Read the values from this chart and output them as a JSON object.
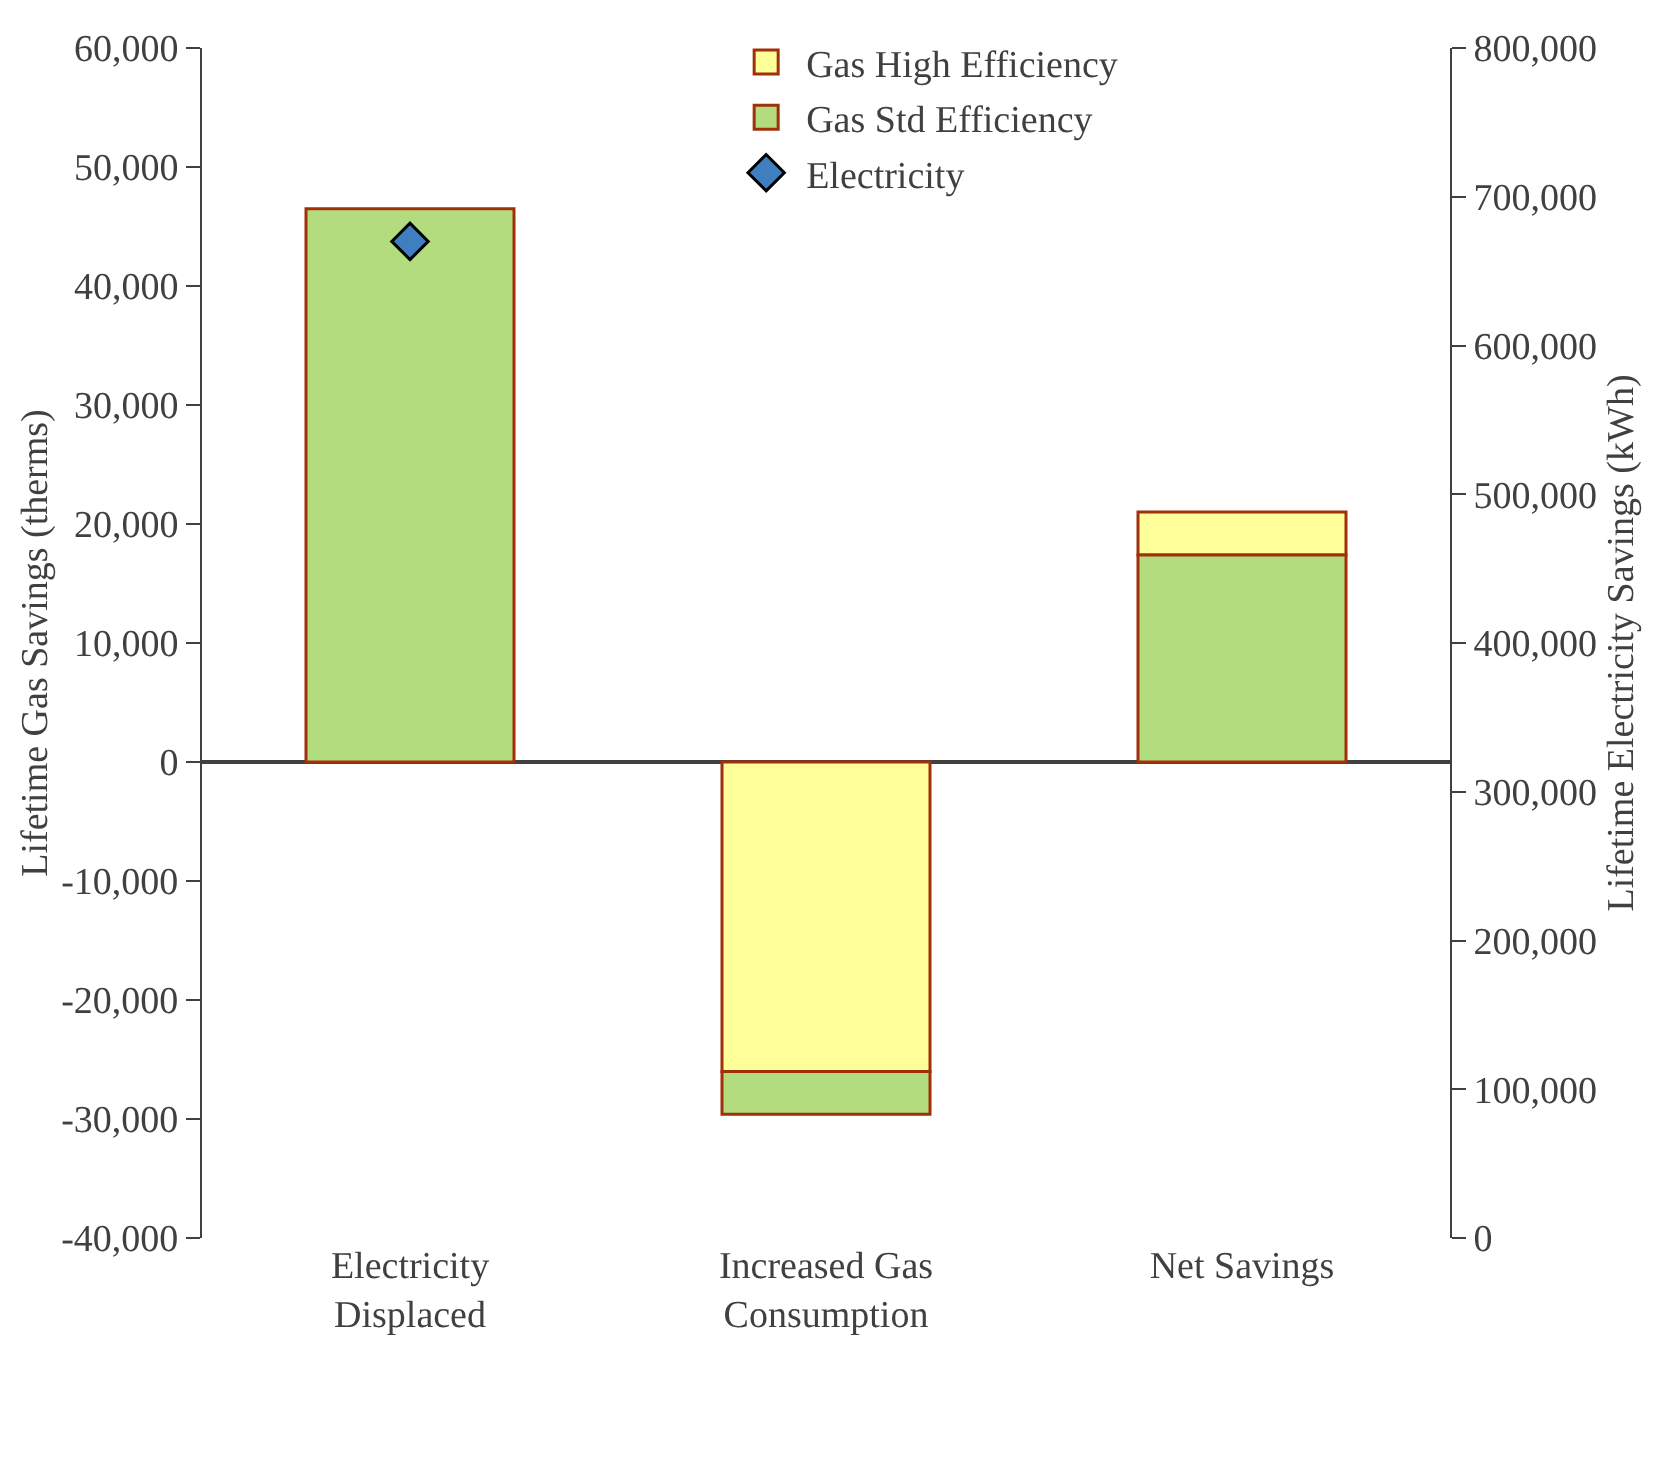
{
  "chart_data": {
    "type": "bar",
    "ylabel": "Lifetime Gas Savings (therms)",
    "y2label": "Lifetime Electricity Savings (kWh)",
    "categories": [
      "Electricity Displaced",
      "Increased Gas Consumption",
      "Net Savings"
    ],
    "series": [
      {
        "name": "Gas High Efficiency",
        "color": "#ffff99",
        "values": [
          null,
          -26000,
          3600
        ],
        "base": [
          null,
          0,
          17400
        ]
      },
      {
        "name": "Gas Std Efficiency",
        "color": "#b3dc7e",
        "values": [
          46500,
          -3600,
          17400
        ],
        "base": [
          0,
          -26000,
          0
        ]
      },
      {
        "name": "Electricity",
        "type": "scatter",
        "axis": "y2",
        "color": "#3f7fbf",
        "marker": "diamond",
        "values": [
          670000,
          null,
          null
        ]
      }
    ],
    "ylim": [
      -40000,
      60000
    ],
    "yticks": [
      {
        "value": -40000,
        "label": "-40,000"
      },
      {
        "value": -30000,
        "label": "-30,000"
      },
      {
        "value": -20000,
        "label": "-20,000"
      },
      {
        "value": -10000,
        "label": "-10,000"
      },
      0,
      {
        "value": 10000,
        "label": "10,000"
      },
      {
        "value": 20000,
        "label": "20,000"
      },
      {
        "value": 30000,
        "label": "30,000"
      },
      {
        "value": 40000,
        "label": "40,000"
      },
      {
        "value": 50000,
        "label": "50,000"
      },
      {
        "value": 60000,
        "label": "60,000"
      }
    ],
    "y2lim": [
      0,
      800000
    ],
    "y2ticks": [
      0,
      {
        "value": 100000,
        "label": "100,000"
      },
      {
        "value": 200000,
        "label": "200,000"
      },
      {
        "value": 300000,
        "label": "300,000"
      },
      {
        "value": 400000,
        "label": "400,000"
      },
      {
        "value": 500000,
        "label": "500,000"
      },
      {
        "value": 600000,
        "label": "600,000"
      },
      {
        "value": 700000,
        "label": "700,000"
      },
      {
        "value": 800000,
        "label": "800,000"
      }
    ],
    "legend": "top"
  }
}
